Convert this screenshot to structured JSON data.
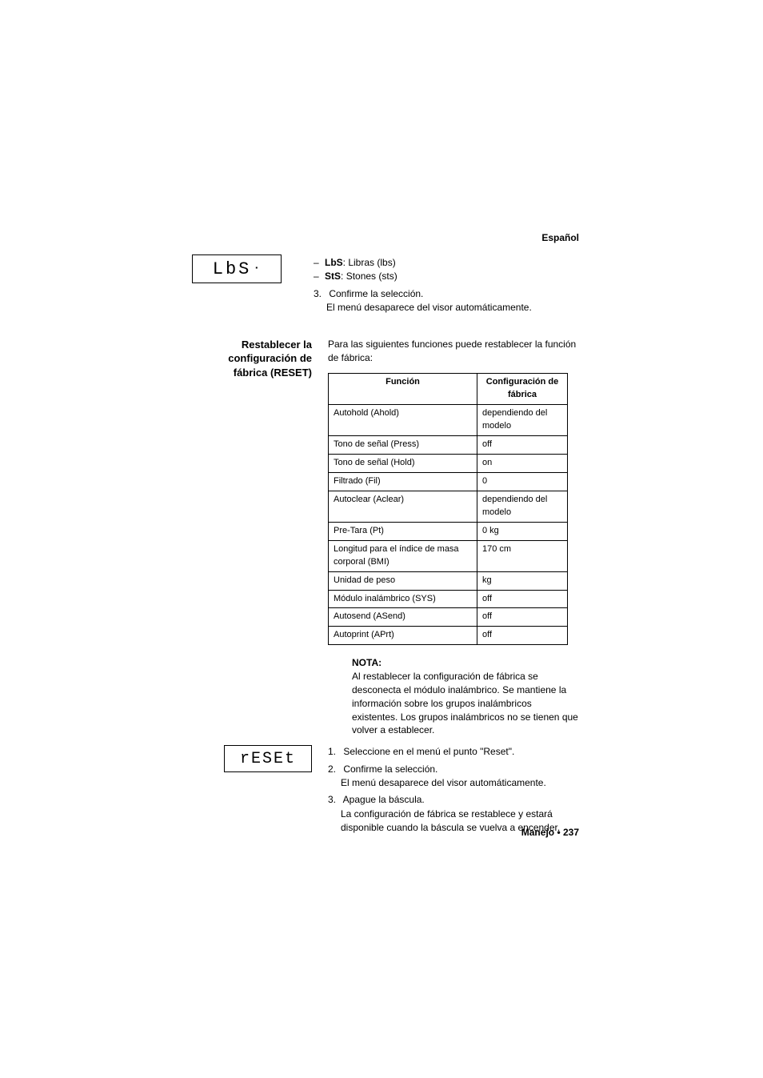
{
  "language_label": "Español",
  "lcd1_text": "LbS",
  "unit_options": [
    {
      "code": "LbS",
      "desc": "Libras (lbs)"
    },
    {
      "code": "StS",
      "desc": "Stones (sts)"
    }
  ],
  "confirm_step_num": "3.",
  "confirm_step_text": "Confirme la selección.",
  "confirm_step_cont": "El menú desaparece del visor automáticamente.",
  "reset_heading_line1": "Restablecer la",
  "reset_heading_line2": "configuración de",
  "reset_heading_line3": "fábrica (RESET)",
  "reset_intro": "Para las siguientes funciones puede restablecer la función de fábrica:",
  "table": {
    "col1_header": "Función",
    "col2_header": "Configuración de fábrica",
    "rows": [
      {
        "fn": "Autohold (Ahold)",
        "val": "dependiendo del modelo"
      },
      {
        "fn": "Tono de señal (Press)",
        "val": "off"
      },
      {
        "fn": "Tono de señal (Hold)",
        "val": "on"
      },
      {
        "fn": "Filtrado (Fil)",
        "val": "0"
      },
      {
        "fn": "Autoclear (Aclear)",
        "val": "dependiendo del modelo"
      },
      {
        "fn": "Pre-Tara (Pt)",
        "val": "0 kg"
      },
      {
        "fn": "Longitud para el índice  de masa corporal (BMI)",
        "val": "170 cm"
      },
      {
        "fn": "Unidad de peso",
        "val": "kg"
      },
      {
        "fn": "Módulo inalámbrico (SYS)",
        "val": "off"
      },
      {
        "fn": "Autosend (ASend)",
        "val": "off"
      },
      {
        "fn": "Autoprint (APrt)",
        "val": "off"
      }
    ]
  },
  "nota_title": "NOTA:",
  "nota_body": "Al restablecer la configuración de fábrica se desconecta el módulo inalámbrico. Se mantiene la información sobre los grupos inalámbricos existentes. Los grupos inalámbricos no se tienen que volver a establecer.",
  "lcd2_text": "rESEt",
  "steps": [
    {
      "num": "1.",
      "text": "Seleccione en el menú el punto \"Reset\"."
    },
    {
      "num": "2.",
      "text": "Confirme la selección.",
      "cont": "El menú desaparece del visor automáticamente."
    },
    {
      "num": "3.",
      "text": "Apague la báscula.",
      "cont": "La configuración de fábrica se restablece y estará disponible cuando la báscula se vuelva a encender."
    }
  ],
  "footer": "Manejo • 237"
}
